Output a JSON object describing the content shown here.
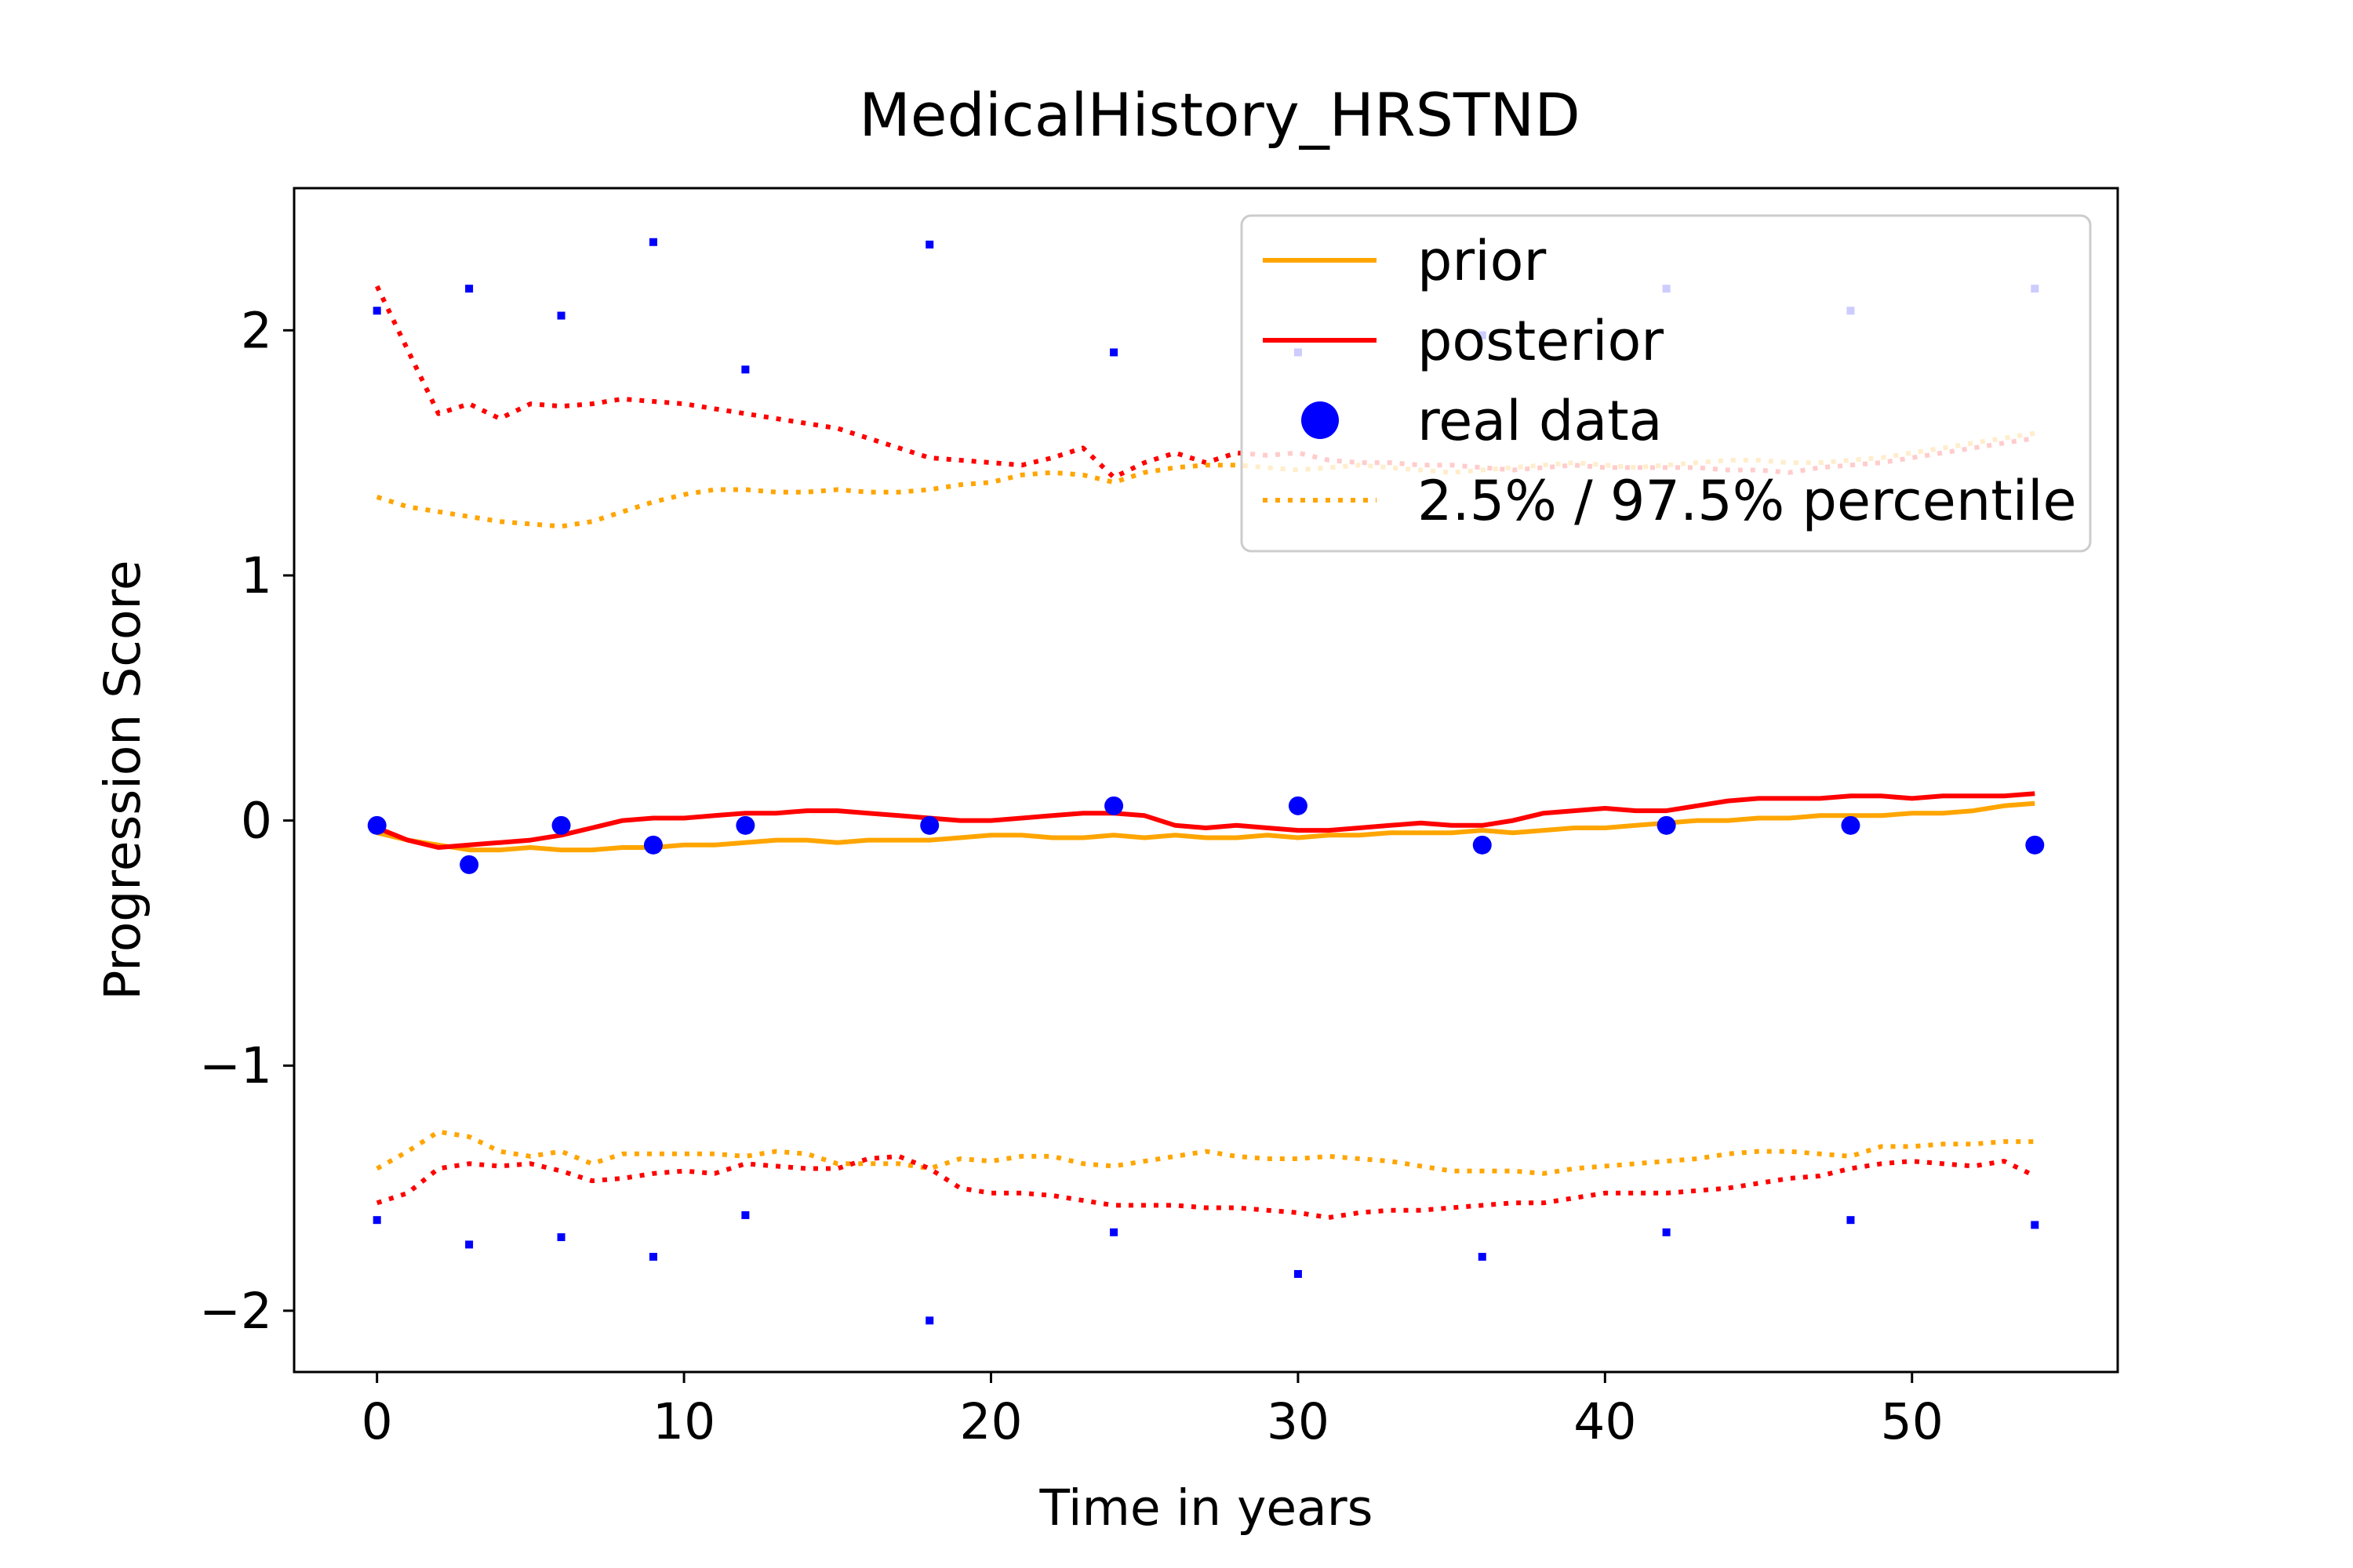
{
  "chart_data": {
    "type": "line",
    "title": "MedicalHistory_HRSTND",
    "xlabel": "Time in years",
    "ylabel": "Progression Score",
    "xlim": [
      -2.7,
      56.7
    ],
    "ylim": [
      -2.25,
      2.58
    ],
    "xticks": [
      0,
      10,
      20,
      30,
      40,
      50
    ],
    "yticks": [
      -2,
      -1,
      0,
      1,
      2
    ],
    "ytick_labels": [
      "−2",
      "−1",
      "0",
      "1",
      "2"
    ],
    "legend": {
      "placement": "top-right",
      "entries": [
        {
          "label": "prior",
          "style": "solid",
          "color": "#ffa500"
        },
        {
          "label": "posterior",
          "style": "solid",
          "color": "#ff0000"
        },
        {
          "label": "real data",
          "style": "marker",
          "color": "#0000ff"
        },
        {
          "label": "2.5% / 97.5% percentile",
          "style": "dotted",
          "color": "#ffa500"
        }
      ]
    },
    "series": [
      {
        "name": "prior",
        "style": "solid",
        "color": "#ffa500",
        "x": [
          0,
          1,
          2,
          3,
          4,
          5,
          6,
          7,
          8,
          9,
          10,
          11,
          12,
          13,
          14,
          15,
          16,
          17,
          18,
          19,
          20,
          21,
          22,
          23,
          24,
          25,
          26,
          27,
          28,
          29,
          30,
          31,
          32,
          33,
          34,
          35,
          36,
          37,
          38,
          39,
          40,
          41,
          42,
          43,
          44,
          45,
          46,
          47,
          48,
          49,
          50,
          51,
          52,
          53,
          54
        ],
        "y": [
          -0.05,
          -0.08,
          -0.1,
          -0.12,
          -0.12,
          -0.11,
          -0.12,
          -0.12,
          -0.11,
          -0.11,
          -0.1,
          -0.1,
          -0.09,
          -0.08,
          -0.08,
          -0.09,
          -0.08,
          -0.08,
          -0.08,
          -0.07,
          -0.06,
          -0.06,
          -0.07,
          -0.07,
          -0.06,
          -0.07,
          -0.06,
          -0.07,
          -0.07,
          -0.06,
          -0.07,
          -0.06,
          -0.06,
          -0.05,
          -0.05,
          -0.05,
          -0.04,
          -0.05,
          -0.04,
          -0.03,
          -0.03,
          -0.02,
          -0.01,
          0.0,
          0.0,
          0.01,
          0.01,
          0.02,
          0.02,
          0.02,
          0.03,
          0.03,
          0.04,
          0.06,
          0.07
        ]
      },
      {
        "name": "posterior",
        "style": "solid",
        "color": "#ff0000",
        "x": [
          0,
          1,
          2,
          3,
          4,
          5,
          6,
          7,
          8,
          9,
          10,
          11,
          12,
          13,
          14,
          15,
          16,
          17,
          18,
          19,
          20,
          21,
          22,
          23,
          24,
          25,
          26,
          27,
          28,
          29,
          30,
          31,
          32,
          33,
          34,
          35,
          36,
          37,
          38,
          39,
          40,
          41,
          42,
          43,
          44,
          45,
          46,
          47,
          48,
          49,
          50,
          51,
          52,
          53,
          54
        ],
        "y": [
          -0.03,
          -0.08,
          -0.11,
          -0.1,
          -0.09,
          -0.08,
          -0.06,
          -0.03,
          0.0,
          0.01,
          0.01,
          0.02,
          0.03,
          0.03,
          0.04,
          0.04,
          0.03,
          0.02,
          0.01,
          0.0,
          0.0,
          0.01,
          0.02,
          0.03,
          0.03,
          0.02,
          -0.02,
          -0.03,
          -0.02,
          -0.03,
          -0.04,
          -0.04,
          -0.03,
          -0.02,
          -0.01,
          -0.02,
          -0.02,
          0.0,
          0.03,
          0.04,
          0.05,
          0.04,
          0.04,
          0.06,
          0.08,
          0.09,
          0.09,
          0.09,
          0.1,
          0.1,
          0.09,
          0.1,
          0.1,
          0.1,
          0.11
        ]
      },
      {
        "name": "posterior 97.5%",
        "style": "dotted",
        "color": "#ff0000",
        "x": [
          0,
          1,
          2,
          3,
          4,
          5,
          6,
          7,
          8,
          9,
          10,
          11,
          12,
          13,
          14,
          15,
          16,
          17,
          18,
          19,
          20,
          21,
          22,
          23,
          24,
          25,
          26,
          27,
          28,
          29,
          30,
          31,
          32,
          33,
          34,
          35,
          36,
          37,
          38,
          39,
          40,
          41,
          42,
          43,
          44,
          45,
          46,
          47,
          48,
          49,
          50,
          51,
          52,
          53,
          54
        ],
        "y": [
          2.18,
          1.92,
          1.66,
          1.7,
          1.64,
          1.7,
          1.69,
          1.7,
          1.72,
          1.71,
          1.7,
          1.68,
          1.66,
          1.64,
          1.62,
          1.6,
          1.56,
          1.52,
          1.48,
          1.47,
          1.46,
          1.45,
          1.48,
          1.52,
          1.4,
          1.46,
          1.5,
          1.46,
          1.5,
          1.49,
          1.5,
          1.47,
          1.46,
          1.46,
          1.45,
          1.45,
          1.44,
          1.43,
          1.44,
          1.45,
          1.44,
          1.44,
          1.44,
          1.44,
          1.43,
          1.43,
          1.42,
          1.44,
          1.45,
          1.46,
          1.48,
          1.5,
          1.52,
          1.54,
          1.56
        ]
      },
      {
        "name": "prior 97.5%",
        "style": "dotted",
        "color": "#ffa500",
        "x": [
          0,
          1,
          2,
          3,
          4,
          5,
          6,
          7,
          8,
          9,
          10,
          11,
          12,
          13,
          14,
          15,
          16,
          17,
          18,
          19,
          20,
          21,
          22,
          23,
          24,
          25,
          26,
          27,
          28,
          29,
          30,
          31,
          32,
          33,
          34,
          35,
          36,
          37,
          38,
          39,
          40,
          41,
          42,
          43,
          44,
          45,
          46,
          47,
          48,
          49,
          50,
          51,
          52,
          53,
          54
        ],
        "y": [
          1.32,
          1.28,
          1.26,
          1.24,
          1.22,
          1.21,
          1.2,
          1.22,
          1.26,
          1.3,
          1.33,
          1.35,
          1.35,
          1.34,
          1.34,
          1.35,
          1.34,
          1.34,
          1.35,
          1.37,
          1.38,
          1.41,
          1.42,
          1.41,
          1.38,
          1.42,
          1.44,
          1.45,
          1.45,
          1.44,
          1.43,
          1.44,
          1.45,
          1.44,
          1.43,
          1.42,
          1.43,
          1.44,
          1.45,
          1.46,
          1.45,
          1.44,
          1.45,
          1.46,
          1.47,
          1.47,
          1.46,
          1.46,
          1.47,
          1.48,
          1.5,
          1.52,
          1.54,
          1.56,
          1.58
        ]
      },
      {
        "name": "prior 2.5%",
        "style": "dotted",
        "color": "#ffa500",
        "x": [
          0,
          1,
          2,
          3,
          4,
          5,
          6,
          7,
          8,
          9,
          10,
          11,
          12,
          13,
          14,
          15,
          16,
          17,
          18,
          19,
          20,
          21,
          22,
          23,
          24,
          25,
          26,
          27,
          28,
          29,
          30,
          31,
          32,
          33,
          34,
          35,
          36,
          37,
          38,
          39,
          40,
          41,
          42,
          43,
          44,
          45,
          46,
          47,
          48,
          49,
          50,
          51,
          52,
          53,
          54
        ],
        "y": [
          -1.42,
          -1.35,
          -1.27,
          -1.29,
          -1.35,
          -1.37,
          -1.35,
          -1.4,
          -1.36,
          -1.36,
          -1.36,
          -1.36,
          -1.37,
          -1.35,
          -1.36,
          -1.4,
          -1.4,
          -1.4,
          -1.42,
          -1.38,
          -1.39,
          -1.37,
          -1.37,
          -1.4,
          -1.41,
          -1.39,
          -1.37,
          -1.35,
          -1.37,
          -1.38,
          -1.38,
          -1.37,
          -1.38,
          -1.39,
          -1.41,
          -1.43,
          -1.43,
          -1.43,
          -1.44,
          -1.42,
          -1.41,
          -1.4,
          -1.39,
          -1.38,
          -1.36,
          -1.35,
          -1.35,
          -1.36,
          -1.37,
          -1.33,
          -1.33,
          -1.32,
          -1.32,
          -1.31,
          -1.31
        ]
      },
      {
        "name": "posterior 2.5%",
        "style": "dotted",
        "color": "#ff0000",
        "x": [
          0,
          1,
          2,
          3,
          4,
          5,
          6,
          7,
          8,
          9,
          10,
          11,
          12,
          13,
          14,
          15,
          16,
          17,
          18,
          19,
          20,
          21,
          22,
          23,
          24,
          25,
          26,
          27,
          28,
          29,
          30,
          31,
          32,
          33,
          34,
          35,
          36,
          37,
          38,
          39,
          40,
          41,
          42,
          43,
          44,
          45,
          46,
          47,
          48,
          49,
          50,
          51,
          52,
          53,
          54
        ],
        "y": [
          -1.56,
          -1.52,
          -1.42,
          -1.4,
          -1.41,
          -1.4,
          -1.43,
          -1.47,
          -1.46,
          -1.44,
          -1.43,
          -1.44,
          -1.4,
          -1.41,
          -1.42,
          -1.42,
          -1.38,
          -1.37,
          -1.42,
          -1.5,
          -1.52,
          -1.52,
          -1.53,
          -1.55,
          -1.57,
          -1.57,
          -1.57,
          -1.58,
          -1.58,
          -1.59,
          -1.6,
          -1.62,
          -1.6,
          -1.59,
          -1.59,
          -1.58,
          -1.57,
          -1.56,
          -1.56,
          -1.54,
          -1.52,
          -1.52,
          -1.52,
          -1.51,
          -1.5,
          -1.48,
          -1.46,
          -1.45,
          -1.42,
          -1.4,
          -1.39,
          -1.4,
          -1.41,
          -1.39,
          -1.45
        ]
      }
    ],
    "real_data": {
      "name": "real data",
      "color": "#0000ff",
      "x": [
        0,
        3,
        6,
        9,
        12,
        18,
        24,
        30,
        36,
        42,
        48,
        54
      ],
      "y": [
        -0.02,
        -0.18,
        -0.02,
        -0.1,
        -0.02,
        -0.02,
        0.06,
        0.06,
        -0.1,
        -0.02,
        -0.02,
        -0.1
      ],
      "upper": [
        2.08,
        2.17,
        2.06,
        2.36,
        1.84,
        2.35,
        1.91,
        1.91,
        1.98,
        2.17,
        2.08,
        2.17
      ],
      "lower": [
        -1.63,
        -1.73,
        -1.7,
        -1.78,
        -1.61,
        -2.04,
        -1.68,
        -1.85,
        -1.78,
        -1.68,
        -1.63,
        -1.65
      ]
    }
  }
}
